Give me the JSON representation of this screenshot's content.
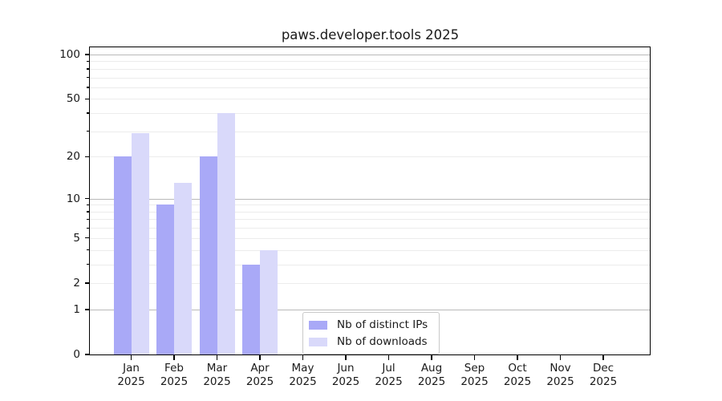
{
  "title": "paws.developer.tools 2025",
  "chart_data": {
    "type": "bar",
    "title": "paws.developer.tools 2025",
    "categories": [
      "Jan",
      "Feb",
      "Mar",
      "Apr",
      "May",
      "Jun",
      "Jul",
      "Aug",
      "Sep",
      "Oct",
      "Nov",
      "Dec"
    ],
    "x_year": "2025",
    "series": [
      {
        "name": "Nb of distinct IPs",
        "color": "#a9a9f7",
        "values": [
          20,
          9,
          20,
          3,
          null,
          null,
          null,
          null,
          null,
          null,
          null,
          null
        ]
      },
      {
        "name": "Nb of downloads",
        "color": "#d9d9fa",
        "values": [
          29,
          13,
          40,
          4,
          null,
          null,
          null,
          null,
          null,
          null,
          null,
          null
        ]
      }
    ],
    "y_scale": "log10(1+x)",
    "ylim": [
      0,
      110
    ],
    "y_ticks_labeled": [
      0,
      1,
      2,
      5,
      10,
      20,
      50,
      100
    ],
    "y_gridlines_major": [
      1,
      10,
      100
    ],
    "y_gridlines_minor": [
      2,
      3,
      4,
      5,
      6,
      7,
      8,
      9,
      20,
      30,
      40,
      50,
      60,
      70,
      80,
      90
    ],
    "grid": true,
    "legend": {
      "position": "inside-bottom-center",
      "entries": [
        "Nb of distinct IPs",
        "Nb of downloads"
      ]
    },
    "colors": {
      "background": "#ffffff",
      "spine": "#000000",
      "gridline_major": "#b9b9b9",
      "gridline_minor": "#ececec",
      "text": "#1a1a1a"
    }
  }
}
